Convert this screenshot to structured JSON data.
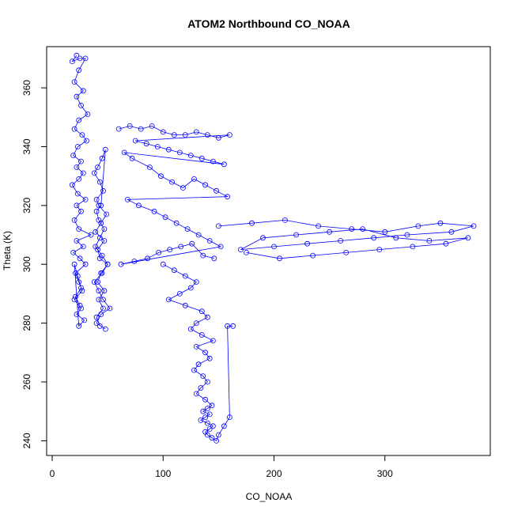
{
  "chart_data": {
    "type": "scatter",
    "title": "ATOM2 Northbound CO_NOAA",
    "xlabel": "CO_NOAA",
    "ylabel": "Theta (K)",
    "xlim": [
      -5,
      395
    ],
    "ylim": [
      235,
      374
    ],
    "xticks": [
      0,
      100,
      200,
      300
    ],
    "yticks": [
      240,
      260,
      280,
      300,
      320,
      340,
      360
    ],
    "point_style": "open-circle",
    "line_style": "connected",
    "color": "#0000ff",
    "series": [
      {
        "x": [
          22,
          18,
          25,
          30,
          24,
          20,
          28,
          22,
          26,
          32,
          24,
          20,
          27,
          31,
          23,
          19,
          26,
          22,
          28,
          24,
          18,
          23,
          30,
          22,
          26,
          20,
          24,
          35,
          22,
          28,
          19,
          25,
          30,
          21,
          24,
          27,
          20,
          26,
          22,
          29,
          24,
          20,
          23,
          26,
          21,
          25
        ],
        "y": [
          371,
          369,
          370,
          370,
          366,
          362,
          359,
          357,
          354,
          351,
          349,
          346,
          344,
          342,
          340,
          337,
          335,
          333,
          331,
          329,
          327,
          324,
          322,
          320,
          318,
          315,
          312,
          310,
          308,
          306,
          304,
          302,
          300,
          297,
          294,
          291,
          288,
          285,
          283,
          281,
          279,
          300,
          296,
          292,
          289,
          286
        ]
      },
      {
        "x": [
          48,
          40,
          44,
          52,
          46,
          42,
          38,
          45,
          50,
          43,
          41,
          47,
          39,
          44,
          49,
          42,
          40,
          46,
          43,
          38,
          41,
          45,
          48,
          44,
          40,
          42,
          47,
          43,
          39,
          45,
          50,
          44,
          41,
          47,
          42,
          46,
          40,
          43
        ],
        "y": [
          278,
          280,
          283,
          285,
          288,
          291,
          294,
          297,
          300,
          302,
          305,
          308,
          311,
          314,
          317,
          320,
          322,
          325,
          328,
          331,
          333,
          336,
          339,
          320,
          318,
          315,
          312,
          309,
          306,
          303,
          300,
          297,
          294,
          291,
          288,
          285,
          282,
          279
        ]
      },
      {
        "x": [
          60,
          70,
          80,
          90,
          100,
          110,
          120,
          130,
          140,
          150,
          160,
          75,
          85,
          95,
          105,
          115,
          125,
          135,
          145,
          155,
          65,
          72,
          88,
          98,
          108,
          118,
          128,
          138,
          148,
          158,
          68,
          78,
          92,
          102,
          112,
          122,
          132,
          142,
          152,
          62,
          74,
          86,
          96,
          106,
          116,
          126,
          136,
          146
        ],
        "y": [
          346,
          347,
          346,
          347,
          345,
          344,
          344,
          345,
          344,
          343,
          344,
          342,
          341,
          340,
          339,
          338,
          337,
          336,
          335,
          334,
          338,
          336,
          333,
          330,
          328,
          326,
          329,
          327,
          325,
          323,
          322,
          320,
          318,
          316,
          314,
          312,
          310,
          308,
          306,
          300,
          301,
          302,
          304,
          305,
          306,
          307,
          303,
          302
        ]
      },
      {
        "x": [
          150,
          180,
          210,
          240,
          270,
          300,
          330,
          350,
          380,
          360,
          320,
          290,
          260,
          230,
          200,
          170,
          190,
          220,
          250,
          280,
          310,
          340,
          375,
          355,
          325,
          295,
          265,
          235,
          205,
          175
        ],
        "y": [
          313,
          314,
          315,
          313,
          312,
          311,
          313,
          314,
          313,
          311,
          310,
          309,
          308,
          307,
          306,
          305,
          309,
          310,
          311,
          312,
          309,
          308,
          309,
          307,
          306,
          305,
          304,
          303,
          302,
          304
        ]
      },
      {
        "x": [
          100,
          110,
          120,
          130,
          125,
          115,
          105,
          120,
          135,
          140,
          130,
          125,
          135,
          145,
          130,
          138,
          142,
          132,
          128,
          136,
          140,
          134,
          130,
          138,
          144,
          140,
          136,
          142,
          138,
          134,
          140,
          145,
          142,
          138,
          140,
          144,
          148,
          150,
          155,
          160,
          158,
          163
        ],
        "y": [
          300,
          298,
          296,
          294,
          292,
          290,
          288,
          286,
          284,
          282,
          280,
          278,
          276,
          274,
          272,
          270,
          268,
          266,
          264,
          262,
          260,
          258,
          256,
          254,
          252,
          251,
          250,
          249,
          248,
          247,
          246,
          245,
          244,
          243,
          242,
          241,
          240,
          242,
          245,
          248,
          279,
          279
        ]
      }
    ]
  }
}
